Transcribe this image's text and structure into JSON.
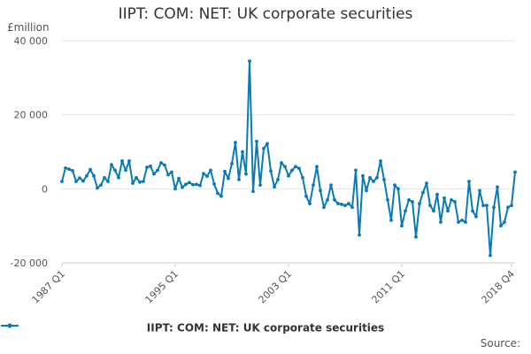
{
  "chart_data": {
    "type": "line",
    "title": "IIPT: COM: NET: UK corporate securities",
    "unit_label": "£million",
    "ylim": [
      -20000,
      40000
    ],
    "yticks": [
      -20000,
      0,
      20000,
      40000
    ],
    "ytick_labels": [
      "-20 000",
      "0",
      "20 000",
      "40 000"
    ],
    "xtick_labels": [
      "1987 Q1",
      "1995 Q1",
      "2003 Q1",
      "2011 Q1",
      "2018 Q4"
    ],
    "xtick_index": [
      0,
      32,
      64,
      96,
      127
    ],
    "grid": true,
    "legend_position": "bottom",
    "colors": {
      "series": "#0a7ab5",
      "grid": "#e6e6e6",
      "axis": "#cccccc"
    },
    "series": [
      {
        "name": "IIPT: COM: NET: UK corporate securities",
        "values": [
          2000,
          5600,
          5300,
          4900,
          2000,
          2900,
          2100,
          3500,
          5200,
          3500,
          200,
          1000,
          3000,
          2000,
          6500,
          5000,
          3000,
          7500,
          5000,
          7500,
          1500,
          3000,
          1800,
          2000,
          5800,
          6100,
          4000,
          5000,
          7000,
          6400,
          3800,
          4500,
          0,
          2800,
          400,
          1200,
          1700,
          1100,
          1200,
          900,
          4100,
          3400,
          5000,
          1300,
          -1200,
          -2000,
          4700,
          2800,
          6800,
          12500,
          2500,
          10000,
          4000,
          34500,
          -700,
          12800,
          1000,
          10900,
          12200,
          4800,
          500,
          2500,
          7000,
          6000,
          3500,
          5000,
          6000,
          5500,
          3000,
          -2000,
          -4000,
          1000,
          6000,
          -500,
          -5000,
          -3000,
          1000,
          -3000,
          -4000,
          -4200,
          -4500,
          -4000,
          -5000,
          5000,
          -12500,
          3500,
          -500,
          3000,
          2000,
          3000,
          7500,
          2500,
          -3000,
          -8500,
          1000,
          0,
          -10000,
          -6000,
          -3000,
          -3500,
          -13000,
          -4000,
          -1000,
          1500,
          -4500,
          -6000,
          -1500,
          -9000,
          -2500,
          -6000,
          -3000,
          -3500,
          -9000,
          -8500,
          -9000,
          2000,
          -6000,
          -7500,
          -500,
          -4500,
          -4500,
          -18000,
          -5000,
          500,
          -10000,
          -9000,
          -5000,
          -4500,
          4500
        ]
      }
    ],
    "source_label": "Source:"
  }
}
